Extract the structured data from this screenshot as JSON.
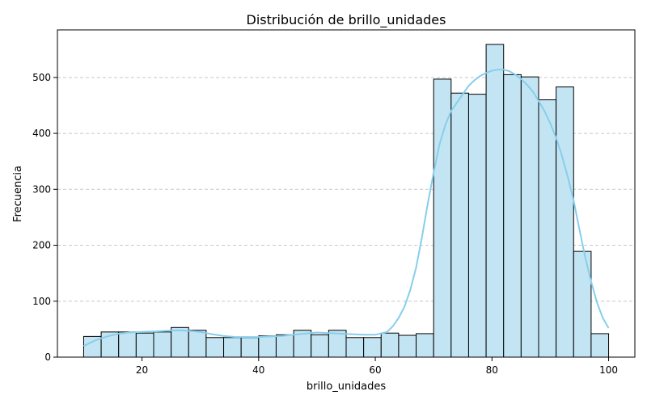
{
  "chart_data": {
    "type": "bar",
    "title": "Distribución de brillo_unidades",
    "xlabel": "brillo_unidades",
    "ylabel": "Frecuencia",
    "xlim": [
      5.5,
      104.5
    ],
    "ylim": [
      0,
      585
    ],
    "x_ticks": [
      20,
      40,
      60,
      80,
      100
    ],
    "y_ticks": [
      0,
      100,
      200,
      300,
      400,
      500
    ],
    "grid": "y-dashed",
    "bar_color": "#c3e5f3",
    "bar_edge_color": "#000000",
    "kde_color": "#87ceeb",
    "bins": {
      "start": 10,
      "width": 3,
      "counts": [
        37,
        45,
        45,
        43,
        45,
        53,
        48,
        35,
        35,
        35,
        38,
        40,
        48,
        40,
        48,
        35,
        35,
        43,
        39,
        42,
        497,
        472,
        470,
        559,
        505,
        501,
        460,
        483,
        189,
        42
      ]
    },
    "kde": {
      "x": [
        10,
        12,
        14,
        16,
        18,
        20,
        22,
        24,
        26,
        28,
        30,
        32,
        34,
        36,
        38,
        40,
        42,
        44,
        46,
        48,
        50,
        52,
        54,
        56,
        58,
        60,
        62,
        63,
        64,
        65,
        66,
        67,
        68,
        69,
        70,
        71,
        72,
        73,
        74,
        75,
        76,
        77,
        78,
        79,
        80,
        81,
        82,
        83,
        84,
        85,
        86,
        87,
        88,
        89,
        90,
        91,
        92,
        93,
        94,
        95,
        96,
        97,
        98,
        99,
        100
      ],
      "y": [
        20,
        30,
        37,
        42,
        44,
        45,
        46,
        47,
        48,
        47,
        45,
        41,
        38,
        36,
        36,
        36,
        37,
        38,
        40,
        42,
        44,
        43,
        42,
        41,
        40,
        40,
        45,
        55,
        70,
        90,
        120,
        160,
        215,
        275,
        330,
        380,
        415,
        440,
        455,
        470,
        485,
        495,
        503,
        508,
        512,
        514,
        514,
        511,
        505,
        497,
        487,
        475,
        458,
        440,
        418,
        392,
        360,
        322,
        280,
        228,
        178,
        135,
        98,
        70,
        52
      ]
    }
  }
}
